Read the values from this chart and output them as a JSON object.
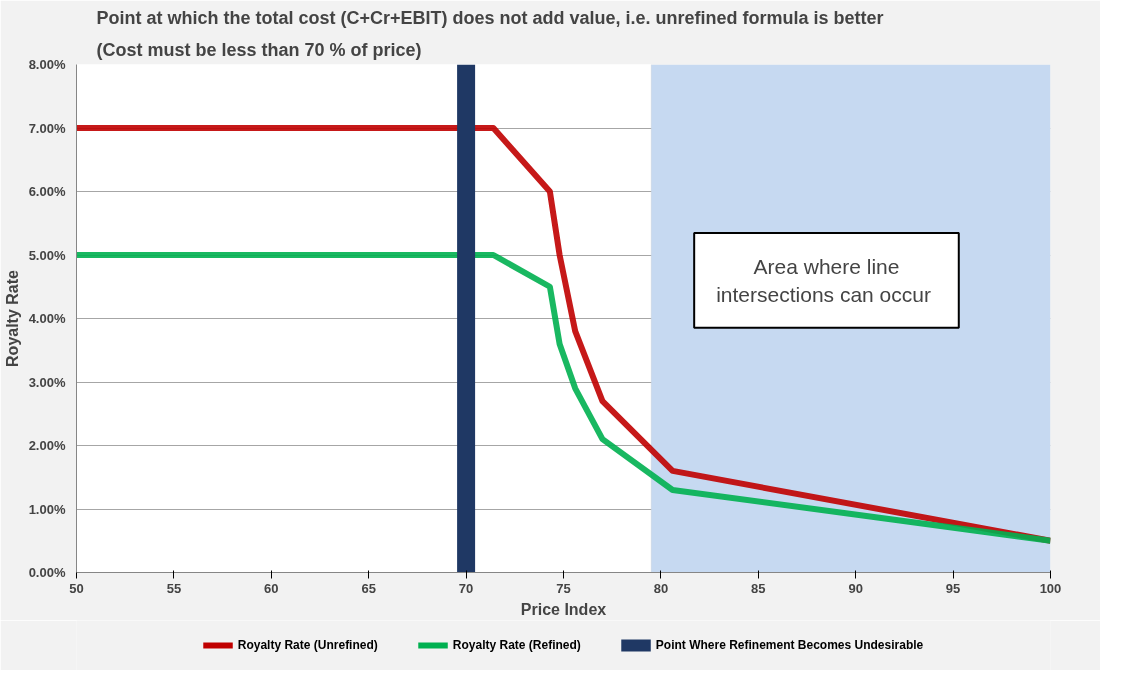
{
  "chart_data": {
    "type": "line",
    "title": "Point at which the total cost (C+Cr+EBIT) does not add value, i.e. unrefined formula is better",
    "subtitle": "(Cost must be less than      70 % of price)",
    "xlabel": "Price Index",
    "ylabel": "Royalty Rate",
    "series": [
      {
        "name": "Royalty Rate (Unrefined)",
        "color": "#c00000",
        "x": [
          50,
          71.4,
          74.3,
          74.8,
          75.6,
          77.0,
          80.6,
          100
        ],
        "values": [
          7.0,
          7.0,
          6.0,
          5.0,
          3.8,
          2.7,
          1.6,
          0.5
        ]
      },
      {
        "name": "Royalty Rate (Refined)",
        "color": "#00b050",
        "x": [
          50,
          71.4,
          74.3,
          74.8,
          75.6,
          77.0,
          80.6,
          100
        ],
        "values": [
          5.0,
          5.0,
          4.5,
          3.6,
          2.9,
          2.1,
          1.3,
          0.5
        ]
      }
    ],
    "ref_lines": [
      {
        "axis": "x",
        "value": 70,
        "label": "Point Where Refinement Becomes Undesirable",
        "color": "#1f3864"
      }
    ],
    "bands": [
      {
        "axis": "x",
        "from": 79.5,
        "to": 100,
        "color": "#c6d9f1"
      }
    ],
    "annotations": [
      "Area where line\nintersections  can occur"
    ],
    "xlim": [
      50,
      100
    ],
    "xticks": [
      50,
      55,
      60,
      65,
      70,
      75,
      80,
      85,
      90,
      95,
      100
    ],
    "ylim": [
      0,
      8
    ],
    "yticks": [
      {
        "value": 0,
        "label": "0.00%"
      },
      {
        "value": 1,
        "label": "1.00%"
      },
      {
        "value": 2,
        "label": "2.00%"
      },
      {
        "value": 3,
        "label": "3.00%"
      },
      {
        "value": 4,
        "label": "4.00%"
      },
      {
        "value": 5,
        "label": "5.00%"
      },
      {
        "value": 6,
        "label": "6.00%"
      },
      {
        "value": 7,
        "label": "7.00%"
      },
      {
        "value": 8,
        "label": "8.00%"
      }
    ],
    "grid": "y",
    "legend": "bottom",
    "marker": "none",
    "line_style": "solid"
  }
}
